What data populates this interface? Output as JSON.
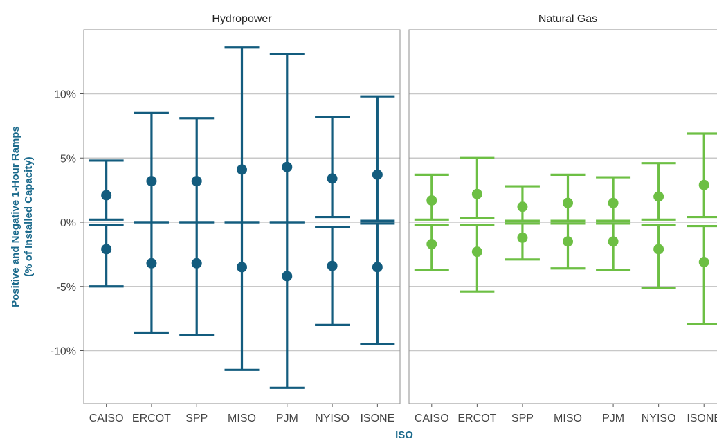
{
  "chart_data": {
    "type": "errorbar",
    "facets": [
      "Hydropower",
      "Natural Gas"
    ],
    "categories": [
      "CAISO",
      "ERCOT",
      "SPP",
      "MISO",
      "PJM",
      "NYISO",
      "ISONE"
    ],
    "xlabel": "ISO",
    "ylabel_line1": "Positive and Negative 1-Hour Ramps",
    "ylabel_line2": "(% of Installed Capacity)",
    "yticks": [
      10,
      5,
      0,
      -5,
      -10
    ],
    "ytick_labels": [
      "10%",
      "5%",
      "0%",
      "-5%",
      "-10%"
    ],
    "ylim": [
      -14.5,
      15
    ],
    "grid": true,
    "colors": {
      "Hydropower": "#135c7e",
      "Natural Gas": "#6dbf44",
      "axis_title": "#1b6a8c"
    },
    "series": [
      {
        "facet": "Hydropower",
        "positive": [
          {
            "low": 0.2,
            "mean": 2.1,
            "high": 4.8
          },
          {
            "low": 0.0,
            "mean": 3.2,
            "high": 8.5
          },
          {
            "low": 0.0,
            "mean": 3.2,
            "high": 8.1
          },
          {
            "low": 0.0,
            "mean": 4.1,
            "high": 13.6
          },
          {
            "low": 0.0,
            "mean": 4.3,
            "high": 13.1
          },
          {
            "low": 0.4,
            "mean": 3.4,
            "high": 8.2
          },
          {
            "low": 0.1,
            "mean": 3.7,
            "high": 9.8
          }
        ],
        "negative": [
          {
            "low": -5.0,
            "mean": -2.1,
            "high": -0.2
          },
          {
            "low": -8.6,
            "mean": -3.2,
            "high": 0.0
          },
          {
            "low": -8.8,
            "mean": -3.2,
            "high": 0.0
          },
          {
            "low": -11.5,
            "mean": -3.5,
            "high": 0.0
          },
          {
            "low": -12.9,
            "mean": -4.2,
            "high": 0.0
          },
          {
            "low": -8.0,
            "mean": -3.4,
            "high": -0.4
          },
          {
            "low": -9.5,
            "mean": -3.5,
            "high": -0.1
          }
        ]
      },
      {
        "facet": "Natural Gas",
        "positive": [
          {
            "low": 0.2,
            "mean": 1.7,
            "high": 3.7
          },
          {
            "low": 0.3,
            "mean": 2.2,
            "high": 5.0
          },
          {
            "low": 0.1,
            "mean": 1.2,
            "high": 2.8
          },
          {
            "low": 0.1,
            "mean": 1.5,
            "high": 3.7
          },
          {
            "low": 0.1,
            "mean": 1.5,
            "high": 3.5
          },
          {
            "low": 0.2,
            "mean": 2.0,
            "high": 4.6
          },
          {
            "low": 0.4,
            "mean": 2.9,
            "high": 6.9
          }
        ],
        "negative": [
          {
            "low": -3.7,
            "mean": -1.7,
            "high": -0.2
          },
          {
            "low": -5.4,
            "mean": -2.3,
            "high": -0.2
          },
          {
            "low": -2.9,
            "mean": -1.2,
            "high": -0.1
          },
          {
            "low": -3.6,
            "mean": -1.5,
            "high": -0.1
          },
          {
            "low": -3.7,
            "mean": -1.5,
            "high": -0.1
          },
          {
            "low": -5.1,
            "mean": -2.1,
            "high": -0.2
          },
          {
            "low": -7.9,
            "mean": -3.1,
            "high": -0.3
          }
        ]
      }
    ]
  }
}
